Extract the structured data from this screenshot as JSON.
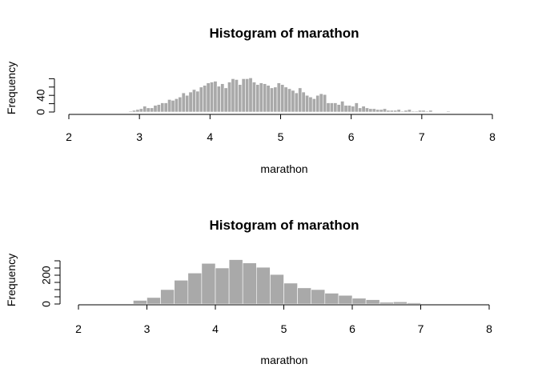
{
  "chart_data": [
    {
      "type": "bar",
      "subtype": "histogram",
      "title": "Histogram of marathon",
      "xlabel": "marathon",
      "ylabel": "Frequency",
      "xlim": [
        2,
        8
      ],
      "ylim": [
        0,
        100
      ],
      "x_ticks": [
        2,
        3,
        4,
        5,
        6,
        7,
        8
      ],
      "y_ticks": [
        0,
        40
      ],
      "bin_width": 0.05,
      "bin_start": 2.8,
      "grid": false,
      "values": [
        1,
        2,
        4,
        6,
        8,
        14,
        10,
        10,
        16,
        18,
        22,
        22,
        30,
        28,
        32,
        36,
        46,
        40,
        48,
        54,
        50,
        60,
        64,
        70,
        72,
        74,
        62,
        68,
        58,
        72,
        80,
        78,
        66,
        80,
        80,
        82,
        72,
        66,
        70,
        68,
        64,
        58,
        60,
        70,
        66,
        60,
        56,
        52,
        46,
        58,
        48,
        40,
        36,
        32,
        40,
        44,
        42,
        22,
        22,
        22,
        18,
        26,
        16,
        16,
        14,
        22,
        10,
        14,
        10,
        8,
        8,
        6,
        6,
        8,
        4,
        4,
        4,
        6,
        2,
        4,
        6,
        2,
        2,
        4,
        4,
        2,
        4,
        0,
        0,
        0,
        0,
        2,
        0,
        0,
        0,
        0,
        0,
        1,
        0,
        0,
        0,
        0
      ]
    },
    {
      "type": "bar",
      "subtype": "histogram",
      "title": "Histogram of marathon",
      "xlabel": "marathon",
      "ylabel": "Frequency",
      "xlim": [
        2,
        8
      ],
      "ylim": [
        0,
        300
      ],
      "x_ticks": [
        2,
        3,
        4,
        5,
        6,
        7,
        8
      ],
      "y_ticks": [
        0,
        200
      ],
      "bin_width": 0.2,
      "bin_start": 2.8,
      "grid": false,
      "values": [
        25,
        45,
        100,
        165,
        215,
        282,
        250,
        308,
        285,
        255,
        205,
        145,
        112,
        100,
        75,
        60,
        40,
        30,
        12,
        15,
        8
      ]
    }
  ]
}
